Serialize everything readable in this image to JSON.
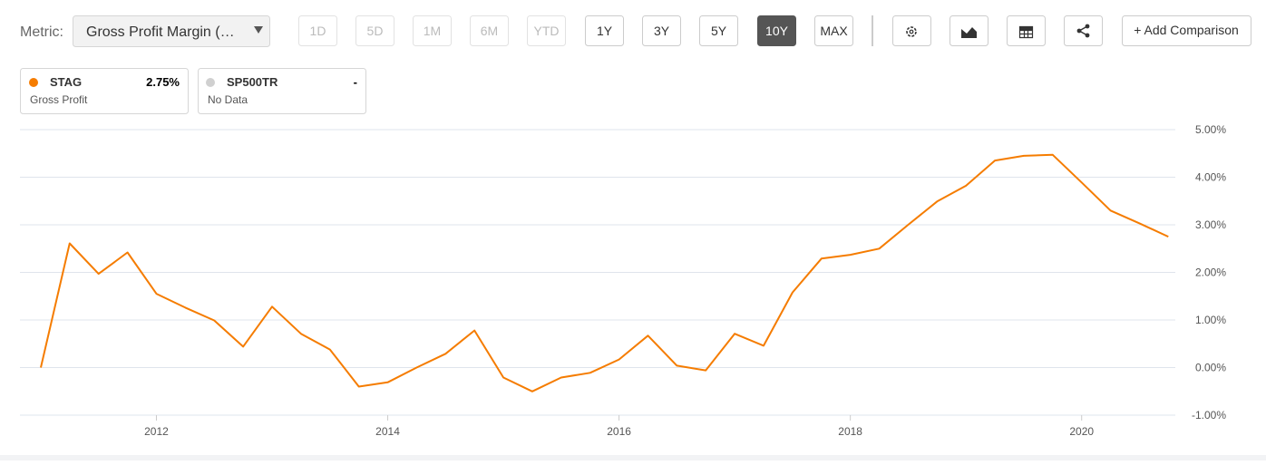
{
  "toolbar": {
    "metric_label": "Metric:",
    "metric_value": "Gross Profit Margin (…",
    "ranges": [
      {
        "label": "1D",
        "state": "disabled"
      },
      {
        "label": "5D",
        "state": "disabled"
      },
      {
        "label": "1M",
        "state": "disabled"
      },
      {
        "label": "6M",
        "state": "disabled"
      },
      {
        "label": "YTD",
        "state": "disabled"
      },
      {
        "label": "1Y",
        "state": "enabled"
      },
      {
        "label": "3Y",
        "state": "enabled"
      },
      {
        "label": "5Y",
        "state": "enabled"
      },
      {
        "label": "10Y",
        "state": "active"
      },
      {
        "label": "MAX",
        "state": "enabled"
      }
    ],
    "add_comparison": "+ Add Comparison"
  },
  "legend": [
    {
      "value": "2.75%",
      "subtitle": "Gross Profit",
      "dot": "#f57c00"
    },
    {
      "name": "SP500TR",
      "value": "-",
      "subtitle": "No Data",
      "dot": "#d0d0d0"
    }
  ],
  "chart_data": {
    "type": "line",
    "x": [
      2011.0,
      2011.25,
      2011.5,
      2011.75,
      2012.0,
      2012.25,
      2012.5,
      2012.75,
      2013.0,
      2013.25,
      2013.5,
      2013.75,
      2014.0,
      2014.25,
      2014.5,
      2014.75,
      2015.0,
      2015.25,
      2015.5,
      2015.75,
      2016.0,
      2016.25,
      2016.5,
      2016.75,
      2017.0,
      2017.25,
      2017.5,
      2017.75,
      2018.0,
      2018.25,
      2018.5,
      2018.75,
      2019.0,
      2019.25,
      2019.5,
      2019.75,
      2020.0,
      2020.25,
      2020.5,
      2020.75
    ],
    "series": [
      {
        "name": "STAG",
        "color": "#f57c00",
        "values": [
          0.0,
          2.61,
          1.97,
          2.42,
          1.55,
          1.26,
          0.99,
          0.44,
          1.28,
          0.71,
          0.38,
          -0.4,
          -0.31,
          0.0,
          0.29,
          0.78,
          -0.21,
          -0.5,
          -0.21,
          -0.11,
          0.17,
          0.67,
          0.04,
          -0.06,
          0.71,
          0.46,
          1.58,
          2.29,
          2.37,
          2.5,
          3.0,
          3.49,
          3.82,
          4.35,
          4.45,
          4.47,
          3.89,
          3.3,
          3.03,
          2.75
        ]
      }
    ],
    "xlim": [
      2010.82,
      2020.81
    ],
    "xticks": [
      2012,
      2014,
      2016,
      2018,
      2020
    ],
    "ylim": [
      -1,
      5
    ],
    "yticks": [
      {
        "value": -1,
        "label": "-1.00%"
      },
      {
        "value": 0,
        "label": "0.00%"
      },
      {
        "value": 1,
        "label": "1.00%"
      },
      {
        "value": 2,
        "label": "2.00%"
      },
      {
        "value": 3,
        "label": "3.00%"
      },
      {
        "value": 4,
        "label": "4.00%"
      },
      {
        "value": 5,
        "label": "5.00%"
      }
    ],
    "grid": true
  }
}
